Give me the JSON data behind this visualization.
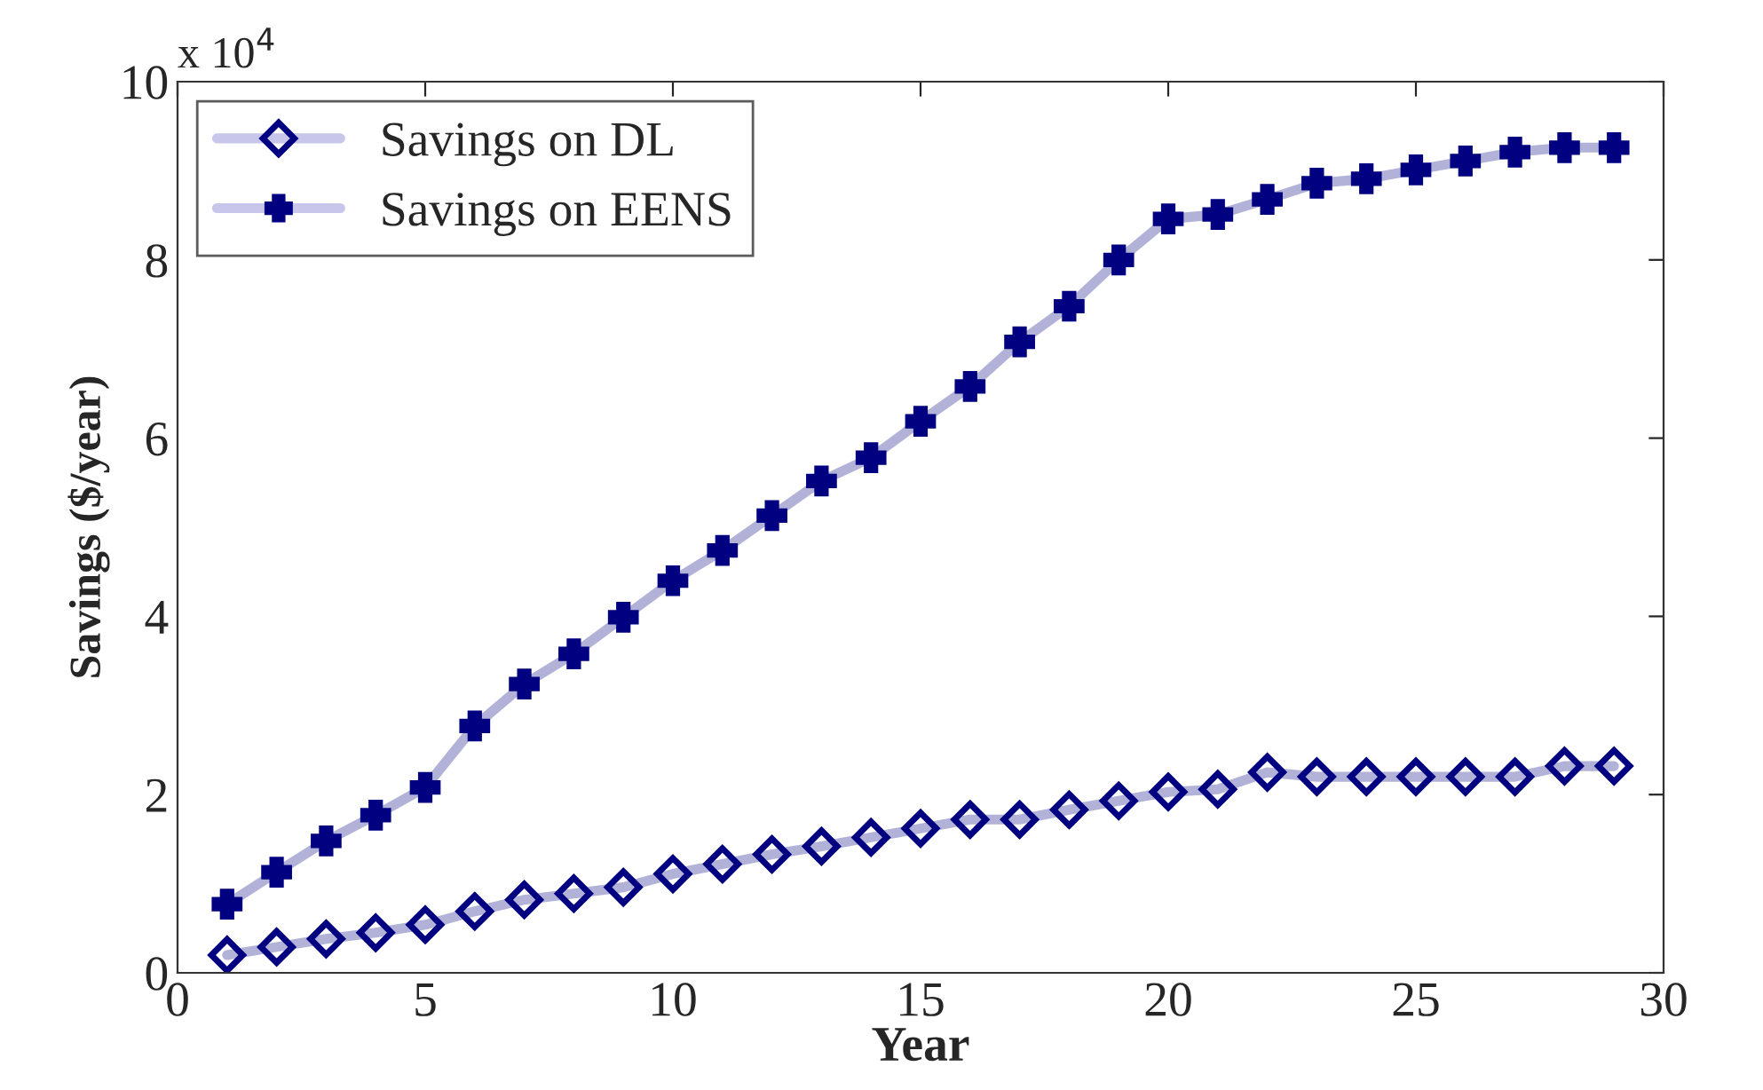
{
  "chart_data": {
    "type": "line",
    "xlabel": "Year",
    "ylabel": "Savings ($/year)",
    "annotations": [
      "x 10$^{4}$"
    ],
    "x": [
      1,
      2,
      3,
      4,
      5,
      6,
      7,
      8,
      9,
      10,
      11,
      12,
      13,
      14,
      15,
      16,
      17,
      18,
      19,
      20,
      21,
      22,
      23,
      24,
      25,
      26,
      27,
      28,
      29
    ],
    "series": [
      {
        "name": "Savings on DL",
        "color": "#000080",
        "marker": "diamond",
        "values": [
          0.2,
          0.29,
          0.38,
          0.45,
          0.54,
          0.69,
          0.82,
          0.89,
          0.96,
          1.11,
          1.22,
          1.33,
          1.42,
          1.52,
          1.62,
          1.72,
          1.72,
          1.83,
          1.93,
          2.03,
          2.06,
          2.25,
          2.2,
          2.2,
          2.2,
          2.2,
          2.2,
          2.32,
          2.32
        ]
      },
      {
        "name": "Savings on EENS",
        "color": "#000080",
        "marker": "cross",
        "values": [
          0.77,
          1.13,
          1.48,
          1.77,
          2.08,
          2.77,
          3.24,
          3.58,
          3.99,
          4.4,
          4.74,
          5.13,
          5.52,
          5.78,
          6.19,
          6.58,
          7.08,
          7.48,
          8.0,
          8.46,
          8.51,
          8.68,
          8.86,
          8.91,
          9.01,
          9.11,
          9.21,
          9.26,
          9.26
        ]
      }
    ],
    "xlim": [
      0,
      30
    ],
    "xticks": [
      0,
      5,
      10,
      15,
      20,
      25,
      30
    ],
    "ylim": [
      0,
      10
    ],
    "yticks": [
      0,
      2,
      4,
      6,
      8,
      10
    ],
    "grid": false,
    "legend": "top left",
    "line_style": "solid"
  }
}
